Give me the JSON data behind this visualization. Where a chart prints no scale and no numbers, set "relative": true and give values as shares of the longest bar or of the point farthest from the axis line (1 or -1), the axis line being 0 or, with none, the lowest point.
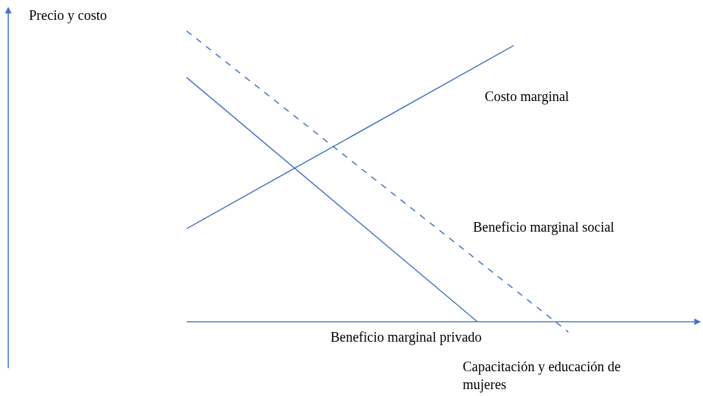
{
  "chart_data": {
    "type": "line",
    "relative": true,
    "annotations": [
      "Precio y costo"
    ],
    "xlabel": "Capacitación y educación de mujeres",
    "ref_lines": [
      {
        "axis": "y",
        "value": 0,
        "color": "#4472c4"
      }
    ],
    "legend": false,
    "marker": "none",
    "categories": [
      null,
      null,
      null,
      null,
      null,
      null,
      null,
      null,
      null,
      null,
      null,
      null,
      null,
      null,
      null,
      null,
      null,
      null,
      null,
      null,
      null,
      null
    ],
    "series": [
      {
        "name": "Costo marginal",
        "color": "#4472c4",
        "line_style": "solid",
        "values": [
          0.32,
          null,
          null,
          null,
          null,
          null,
          null,
          null,
          null,
          null,
          null,
          null,
          null,
          null,
          null,
          null,
          null,
          null,
          0.95,
          null,
          null,
          null
        ]
      },
      {
        "name": "Beneficio marginal social",
        "color": "#4472c4",
        "line_style": "dashed",
        "values": [
          1.0,
          null,
          null,
          null,
          null,
          null,
          null,
          null,
          null,
          null,
          null,
          null,
          null,
          null,
          null,
          null,
          null,
          null,
          null,
          null,
          null,
          -0.035
        ]
      },
      {
        "name": "Beneficio marginal privado",
        "color": "#4472c4",
        "line_style": "solid",
        "values": [
          0.84,
          null,
          null,
          null,
          null,
          null,
          null,
          null,
          null,
          null,
          null,
          null,
          null,
          null,
          null,
          null,
          0.0,
          null,
          null,
          null,
          null,
          null
        ]
      }
    ]
  }
}
